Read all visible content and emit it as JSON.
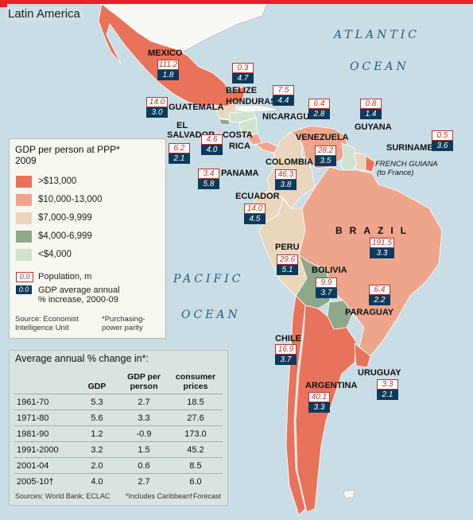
{
  "title": "Latin America",
  "oceans": {
    "atlantic_1": "ATLANTIC",
    "atlantic_2": "OCEAN",
    "pacific_1": "PACIFIC",
    "pacific_2": "OCEAN"
  },
  "countries": {
    "mexico": {
      "name": "MEXICO",
      "pop": "111.2",
      "gdp": "1.8",
      "band": ">$13,000"
    },
    "guatemala": {
      "name": "GUATEMALA",
      "pop": "14.0",
      "gdp": "3.0",
      "band": "$7,000-9,999"
    },
    "belize": {
      "name": "BELIZE",
      "pop": "0.3",
      "gdp": "4.7",
      "band": "$7,000-9,999"
    },
    "honduras": {
      "name": "HONDURAS",
      "pop": "7.5",
      "gdp": "4.4",
      "band": "<$4,000"
    },
    "el_salvador": {
      "name_1": "EL",
      "name_2": "SALVADOR",
      "pop": "6.2",
      "gdp": "2.1",
      "band": "$4,000-6,999"
    },
    "nicaragua": {
      "name": "NICARAGUA",
      "pop": "6.4",
      "gdp": "2.8",
      "band": "<$4,000"
    },
    "costa_rica": {
      "name_1": "COSTA",
      "name_2": "RICA",
      "pop": "4.6",
      "gdp": "4.0",
      "band": "$10,000-13,000"
    },
    "panama": {
      "name": "PANAMA",
      "pop": "3.4",
      "gdp": "5.8",
      "band": "$10,000-13,000"
    },
    "venezuela": {
      "name": "VENEZUELA",
      "pop": "28.2",
      "gdp": "3.5",
      "band": "$10,000-13,000"
    },
    "guyana": {
      "name": "GUYANA",
      "pop": "0.8",
      "gdp": "1.4",
      "band": "<$4,000"
    },
    "suriname": {
      "name": "SURINAME",
      "pop": "0.5",
      "gdp": "3.6",
      "band": "$7,000-9,999"
    },
    "french_guiana": {
      "name_1": "FRENCH GUIANA",
      "name_2": "(to France)"
    },
    "colombia": {
      "name": "COLOMBIA",
      "pop": "46.3",
      "gdp": "3.8",
      "band": "$7,000-9,999"
    },
    "ecuador": {
      "name": "ECUADOR",
      "pop": "14.0",
      "gdp": "4.5",
      "band": "$7,000-9,999"
    },
    "brazil": {
      "name": "BRAZIL",
      "pop": "191.5",
      "gdp": "3.3",
      "band": "$10,000-13,000"
    },
    "peru": {
      "name": "PERU",
      "pop": "29.6",
      "gdp": "5.1",
      "band": "$7,000-9,999"
    },
    "bolivia": {
      "name": "BOLIVIA",
      "pop": "9.9",
      "gdp": "3.7",
      "band": "$4,000-6,999"
    },
    "paraguay": {
      "name": "PARAGUAY",
      "pop": "6.4",
      "gdp": "2.2",
      "band": "$4,000-6,999"
    },
    "chile": {
      "name": "CHILE",
      "pop": "16.9",
      "gdp": "3.7",
      "band": ">$13,000"
    },
    "argentina": {
      "name": "ARGENTINA",
      "pop": "40.1",
      "gdp": "3.3",
      "band": ">$13,000"
    },
    "uruguay": {
      "name": "URUGUAY",
      "pop": "3.3",
      "gdp": "2.1",
      "band": ">$13,000"
    }
  },
  "legend": {
    "title_1": "GDP per person at PPP*",
    "title_2": "2009",
    "bands": [
      {
        "label": ">$13,000",
        "color": "#e8735a"
      },
      {
        "label": "$10,000-13,000",
        "color": "#eea58c"
      },
      {
        "label": "$7,000-9,999",
        "color": "#ead6bd"
      },
      {
        "label": "$4,000-6,999",
        "color": "#8fa88a"
      },
      {
        "label": "<$4,000",
        "color": "#d3e2cf"
      }
    ],
    "pop_key_value": "0.0",
    "pop_key_label": "Population, m",
    "gdp_key_value": "0.0",
    "gdp_key_label_1": "GDP average annual",
    "gdp_key_label_2": "% increase, 2000-09",
    "source_1": "Source: Economist",
    "source_2": "Intelligence Unit",
    "note_1": "*Purchasing-",
    "note_2": "power parity"
  },
  "table": {
    "title": "Average annual % change in*:",
    "headers": [
      "",
      "GDP",
      "GDP per person",
      "consumer prices"
    ],
    "rows": [
      [
        "1961-70",
        "5.3",
        "2.7",
        "18.5"
      ],
      [
        "1971-80",
        "5.6",
        "3.3",
        "27.6"
      ],
      [
        "1981-90",
        "1.2",
        "-0.9",
        "173.0"
      ],
      [
        "1991-2000",
        "3.2",
        "1.5",
        "45.2"
      ],
      [
        "2001-04",
        "2.0",
        "0.6",
        "8.5"
      ],
      [
        "2005-10†",
        "4.0",
        "2.7",
        "6.0"
      ]
    ],
    "source": "Sources: World Bank; ECLAC",
    "note_1": "*Includes Caribbean",
    "note_2": "†Forecast"
  },
  "colors": {
    "ocean": "#c9dde6",
    "land_other": "#ffffff",
    "accent_red": "#e8202a",
    "pop_badge_border": "#b8322a",
    "gdp_badge_fill": "#0c3a5b"
  }
}
